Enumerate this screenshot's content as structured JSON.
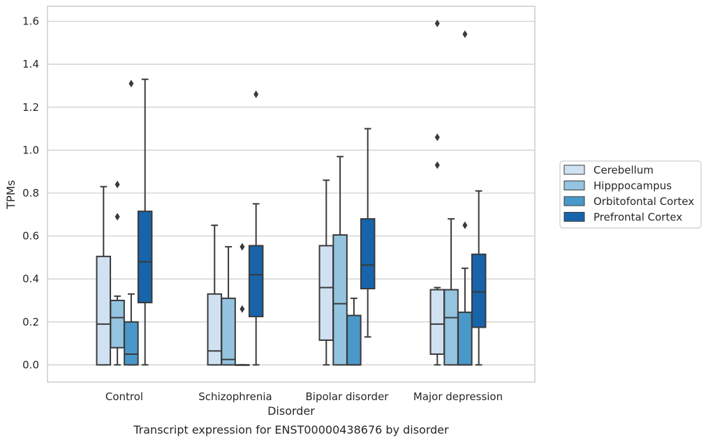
{
  "chart_data": {
    "type": "box",
    "title": "",
    "caption": "Transcript expression for ENST00000438676 by disorder",
    "xlabel": "Disorder",
    "ylabel": "TPMs",
    "ylim": [
      -0.08,
      1.67
    ],
    "yticks": [
      0.0,
      0.2,
      0.4,
      0.6,
      0.8,
      1.0,
      1.2,
      1.4,
      1.6
    ],
    "ytick_labels": [
      "0.0",
      "0.2",
      "0.4",
      "0.6",
      "0.8",
      "1.0",
      "1.2",
      "1.4",
      "1.6"
    ],
    "categories": [
      "Control",
      "Schizophrenia",
      "Bipolar disorder",
      "Major depression"
    ],
    "grid": true,
    "legend_position": "right",
    "series": [
      {
        "name": "Cerebellum",
        "color": "#d0e1f2",
        "boxes": [
          {
            "whislo": 0.0,
            "q1": 0.0,
            "med": 0.19,
            "q3": 0.505,
            "whishi": 0.83,
            "fliers": []
          },
          {
            "whislo": 0.0,
            "q1": 0.0,
            "med": 0.065,
            "q3": 0.33,
            "whishi": 0.65,
            "fliers": []
          },
          {
            "whislo": 0.0,
            "q1": 0.115,
            "med": 0.36,
            "q3": 0.555,
            "whishi": 0.86,
            "fliers": []
          },
          {
            "whislo": 0.0,
            "q1": 0.05,
            "med": 0.19,
            "q3": 0.35,
            "whishi": 0.36,
            "fliers": [
              0.93,
              1.06,
              1.59
            ]
          }
        ]
      },
      {
        "name": "Hipppocampus",
        "color": "#94c4df",
        "boxes": [
          {
            "whislo": 0.0,
            "q1": 0.08,
            "med": 0.22,
            "q3": 0.3,
            "whishi": 0.32,
            "fliers": [
              0.69,
              0.84
            ]
          },
          {
            "whislo": 0.0,
            "q1": 0.0,
            "med": 0.025,
            "q3": 0.31,
            "whishi": 0.55,
            "fliers": []
          },
          {
            "whislo": 0.0,
            "q1": 0.0,
            "med": 0.285,
            "q3": 0.605,
            "whishi": 0.97,
            "fliers": []
          },
          {
            "whislo": 0.0,
            "q1": 0.0,
            "med": 0.22,
            "q3": 0.35,
            "whishi": 0.68,
            "fliers": []
          }
        ]
      },
      {
        "name": "Orbitofontal Cortex",
        "color": "#4a98c9",
        "boxes": [
          {
            "whislo": 0.0,
            "q1": 0.0,
            "med": 0.05,
            "q3": 0.2,
            "whishi": 0.33,
            "fliers": [
              1.31
            ]
          },
          {
            "whislo": 0.0,
            "q1": 0.0,
            "med": 0.0,
            "q3": 0.0,
            "whishi": 0.0,
            "fliers": [
              0.26,
              0.55
            ]
          },
          {
            "whislo": 0.0,
            "q1": 0.0,
            "med": 0.0,
            "q3": 0.23,
            "whishi": 0.31,
            "fliers": []
          },
          {
            "whislo": 0.0,
            "q1": 0.0,
            "med": 0.0,
            "q3": 0.245,
            "whishi": 0.45,
            "fliers": [
              0.65,
              1.54
            ]
          }
        ]
      },
      {
        "name": "Prefrontal Cortex",
        "color": "#1764ab",
        "boxes": [
          {
            "whislo": 0.0,
            "q1": 0.29,
            "med": 0.48,
            "q3": 0.715,
            "whishi": 1.33,
            "fliers": []
          },
          {
            "whislo": 0.0,
            "q1": 0.225,
            "med": 0.42,
            "q3": 0.555,
            "whishi": 0.75,
            "fliers": [
              1.26
            ]
          },
          {
            "whislo": 0.13,
            "q1": 0.355,
            "med": 0.465,
            "q3": 0.68,
            "whishi": 1.1,
            "fliers": []
          },
          {
            "whislo": 0.0,
            "q1": 0.175,
            "med": 0.34,
            "q3": 0.515,
            "whishi": 0.81,
            "fliers": []
          }
        ]
      }
    ]
  }
}
